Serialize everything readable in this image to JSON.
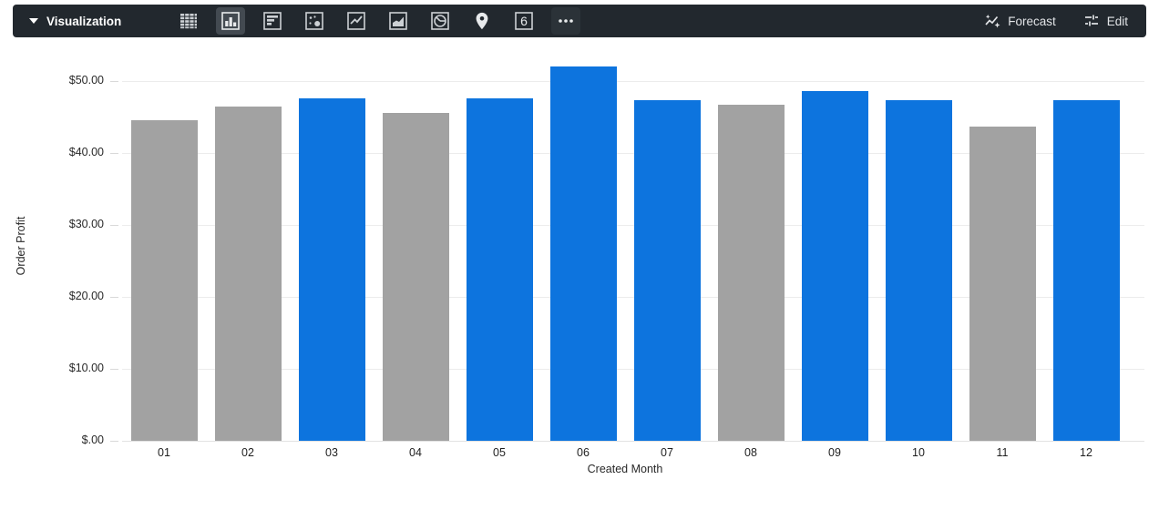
{
  "toolbar": {
    "menu_label": "Visualization",
    "chart_type_icons": [
      {
        "name": "table",
        "selected": false
      },
      {
        "name": "column",
        "selected": true
      },
      {
        "name": "bar",
        "selected": false
      },
      {
        "name": "scatter",
        "selected": false
      },
      {
        "name": "line",
        "selected": false
      },
      {
        "name": "area",
        "selected": false
      },
      {
        "name": "pie",
        "selected": false
      },
      {
        "name": "map",
        "selected": false
      },
      {
        "name": "single-value",
        "selected": false
      },
      {
        "name": "more",
        "selected": false
      }
    ],
    "forecast_label": "Forecast",
    "edit_label": "Edit"
  },
  "chart_data": {
    "type": "bar",
    "title": "",
    "xlabel": "Created Month",
    "ylabel": "Order Profit",
    "categories": [
      "01",
      "02",
      "03",
      "04",
      "05",
      "06",
      "07",
      "08",
      "09",
      "10",
      "11",
      "12"
    ],
    "values": [
      44.5,
      46.5,
      47.6,
      45.6,
      47.6,
      52.0,
      47.3,
      46.7,
      48.6,
      47.3,
      43.7,
      47.3
    ],
    "bar_colors": [
      "gray",
      "gray",
      "blue",
      "gray",
      "blue",
      "blue",
      "blue",
      "gray",
      "blue",
      "blue",
      "gray",
      "blue"
    ],
    "colors": {
      "blue": "#0d74de",
      "gray": "#a2a2a2"
    },
    "y_ticks": [
      {
        "value": 0,
        "label": "$.00"
      },
      {
        "value": 10,
        "label": "$10.00"
      },
      {
        "value": 20,
        "label": "$20.00"
      },
      {
        "value": 30,
        "label": "$30.00"
      },
      {
        "value": 40,
        "label": "$40.00"
      },
      {
        "value": 50,
        "label": "$50.00"
      }
    ],
    "ylim": [
      0,
      53
    ],
    "grid": true,
    "legend": "none"
  }
}
